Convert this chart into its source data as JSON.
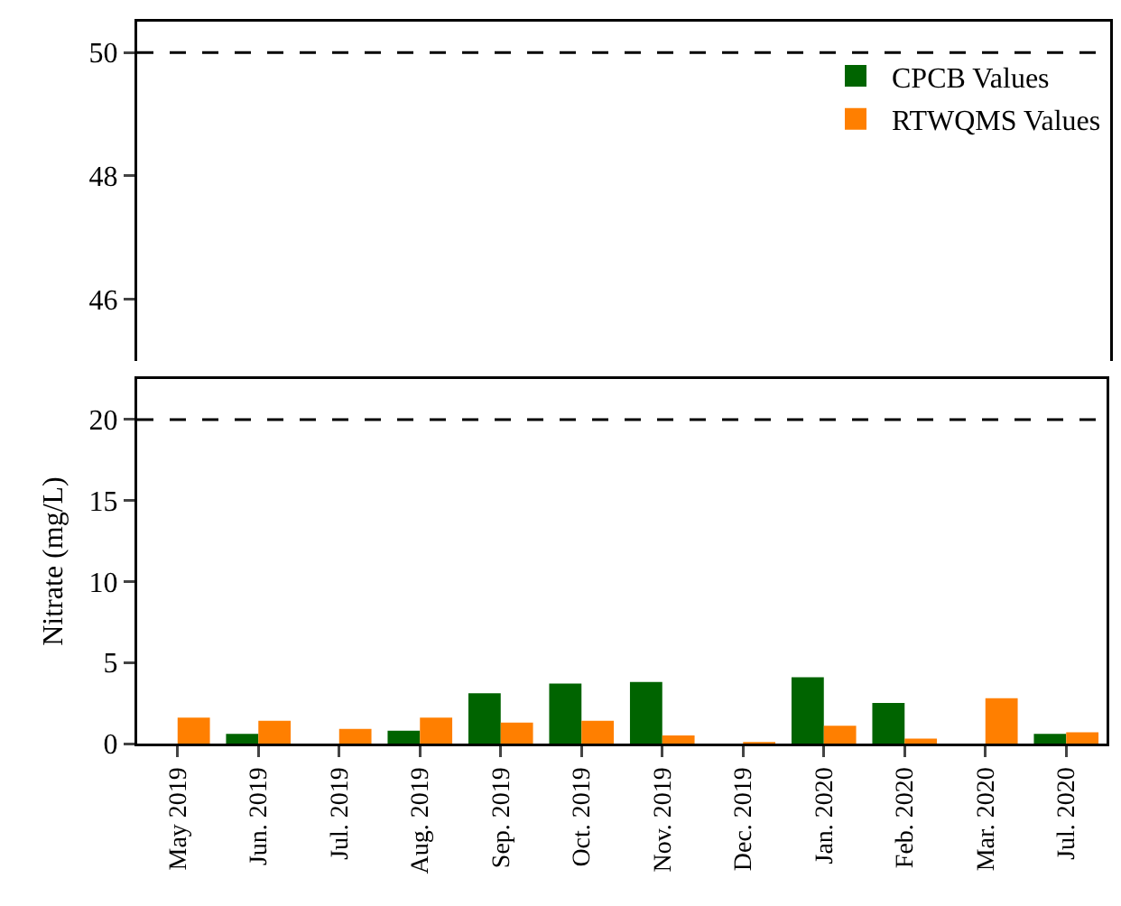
{
  "chart_data": [
    {
      "type": "bar",
      "series": [
        {
          "name": "CPCB Values",
          "color": "#006400"
        },
        {
          "name": "RTWQMS Values",
          "color": "#ff7f00"
        }
      ],
      "ylim": [
        45,
        50.5
      ],
      "yticks": [
        46,
        48,
        50
      ],
      "ref_lines": [
        {
          "axis": "y",
          "value": 50,
          "line_style": "dashed",
          "color": "#000000"
        }
      ],
      "tick_labels": "y",
      "legend": "top right",
      "grid": false
    },
    {
      "type": "bar",
      "categories": [
        "May 2019",
        "Jun. 2019",
        "Jul. 2019",
        "Aug. 2019",
        "Sep. 2019",
        "Oct. 2019",
        "Nov. 2019",
        "Dec. 2019",
        "Jan. 2020",
        "Feb. 2020",
        "Mar. 2020",
        "Jul. 2020"
      ],
      "ylabel": "Nitrate (mg/L)",
      "series": [
        {
          "color": "#006400",
          "values": [
            0,
            0.6,
            0,
            0.8,
            3.1,
            3.7,
            3.8,
            0,
            4.1,
            2.5,
            0,
            0.6
          ]
        },
        {
          "color": "#ff7f00",
          "values": [
            1.6,
            1.4,
            0.9,
            1.6,
            1.3,
            1.4,
            0.5,
            0.1,
            1.1,
            0.3,
            2.8,
            0.7
          ]
        }
      ],
      "ylim": [
        0,
        22.5
      ],
      "yticks": [
        0,
        5,
        10,
        15,
        20
      ],
      "ref_lines": [
        {
          "axis": "y",
          "value": 20,
          "line_style": "dashed",
          "color": "#000000"
        }
      ],
      "grid": false
    }
  ]
}
